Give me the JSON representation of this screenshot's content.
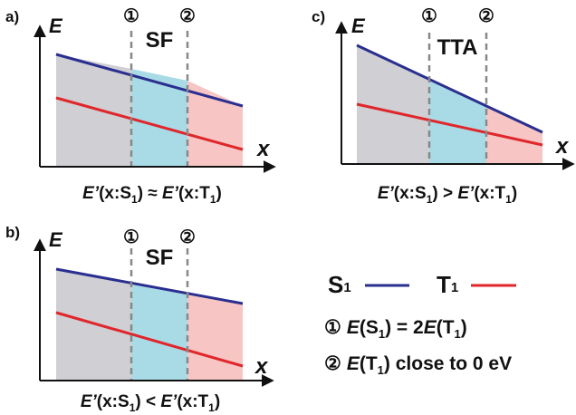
{
  "panels": [
    {
      "id": "a",
      "label": "a)",
      "y_axis": "E",
      "x_axis": "x",
      "marker1": "①",
      "marker2": "②",
      "region": "SF",
      "caption": {
        "lhs": "E’",
        "lhs_arg": "(x:S",
        "sub1": "1",
        "close1": ")",
        "op": " ≈ ",
        "rhs": "E’",
        "rhs_arg": "(x:T",
        "sub2": "1",
        "close2": ")"
      }
    },
    {
      "id": "b",
      "label": "b)",
      "y_axis": "E",
      "x_axis": "x",
      "marker1": "①",
      "marker2": "②",
      "region": "SF",
      "caption": {
        "lhs": "E’",
        "lhs_arg": "(x:S",
        "sub1": "1",
        "close1": ")",
        "op": " < ",
        "rhs": "E’",
        "rhs_arg": "(x:T",
        "sub2": "1",
        "close2": ")"
      }
    },
    {
      "id": "c",
      "label": "c)",
      "y_axis": "E",
      "x_axis": "x",
      "marker1": "①",
      "marker2": "②",
      "region": "TTA",
      "caption": {
        "lhs": "E’",
        "lhs_arg": "(x:S",
        "sub1": "1",
        "close1": ")",
        "op": " > ",
        "rhs": "E’",
        "rhs_arg": "(x:T",
        "sub2": "1",
        "close2": ")"
      }
    }
  ],
  "legend": {
    "s1": {
      "name": "S",
      "sub": "1"
    },
    "t1": {
      "name": "T",
      "sub": "1"
    },
    "cond1": {
      "marker": "①",
      "e1": "E",
      "a1": "(S",
      "s1": "1",
      "mid": ") = 2",
      "e2": "E",
      "a2": "(T",
      "s2": "1",
      "end": ")"
    },
    "cond2": {
      "marker": "②",
      "e": "E",
      "a": "(T",
      "s": "1",
      "end": ") close to 0 eV"
    }
  },
  "colors": {
    "s1_line": "#2a2f8f",
    "t1_line": "#e0262b",
    "region_before": "#cfcfd4",
    "region_between": "#a9dbe6",
    "region_after": "#f6c5c4",
    "guide": "#888888"
  }
}
